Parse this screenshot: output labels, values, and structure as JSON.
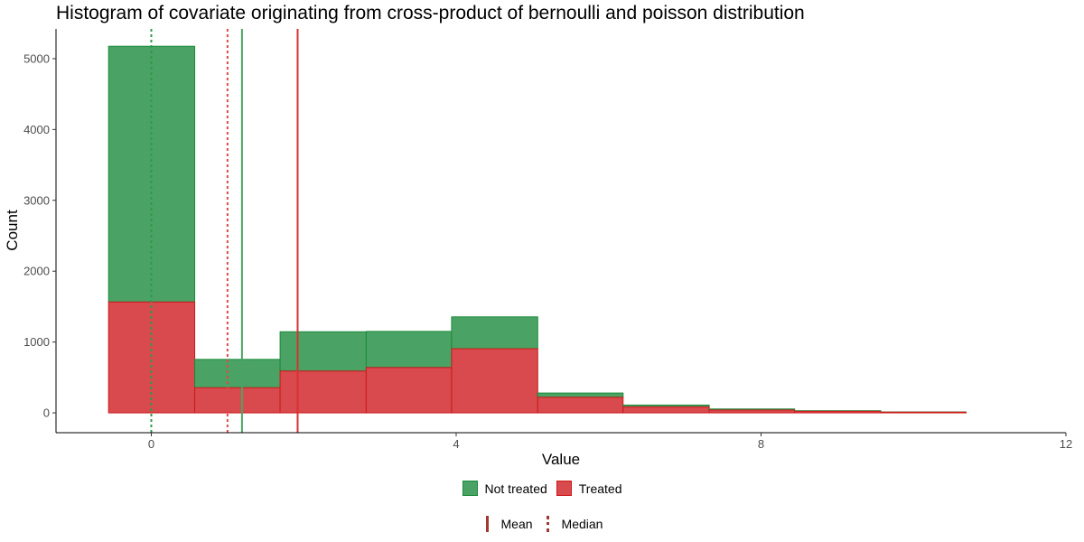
{
  "chart_data": {
    "type": "bar",
    "title": "Histogram of covariate originating from cross-product of bernoulli and poisson distribution",
    "xlabel": "Value",
    "ylabel": "Count",
    "xlim": [
      -1.25,
      12.0
    ],
    "ylim": [
      -280,
      5420
    ],
    "x_ticks": [
      0,
      4,
      8,
      12
    ],
    "y_ticks": [
      0,
      1000,
      2000,
      3000,
      4000,
      5000
    ],
    "bin_edges": [
      -0.56,
      0.57,
      1.69,
      2.82,
      3.94,
      5.07,
      6.19,
      7.32,
      8.44,
      9.57,
      10.69
    ],
    "series": [
      {
        "name": "Not treated",
        "color": "#1a8a3a",
        "fill": "#4aa364",
        "values": [
          3610,
          400,
          555,
          510,
          450,
          60,
          25,
          15,
          8,
          3
        ]
      },
      {
        "name": "Treated",
        "color": "#cc1a1a",
        "fill": "#d84a4e",
        "values": [
          1565,
          355,
          590,
          640,
          905,
          220,
          85,
          40,
          22,
          10
        ]
      }
    ],
    "stacked": true,
    "reference_lines": [
      {
        "series": "Not treated",
        "stat": "Mean",
        "x": 1.19,
        "style": "solid",
        "color": "#4aa364"
      },
      {
        "series": "Not treated",
        "stat": "Median",
        "x": 0.0,
        "style": "dotted",
        "color": "#2e9a4a"
      },
      {
        "series": "Treated",
        "stat": "Mean",
        "x": 1.92,
        "style": "solid",
        "color": "#d93030"
      },
      {
        "series": "Treated",
        "stat": "Median",
        "x": 1.0,
        "style": "dotted",
        "color": "#e04848"
      }
    ],
    "grid": false,
    "legend": {
      "fill_items": [
        "Not treated",
        "Treated"
      ],
      "line_items": [
        "Mean",
        "Median"
      ],
      "position": "bottom"
    }
  }
}
